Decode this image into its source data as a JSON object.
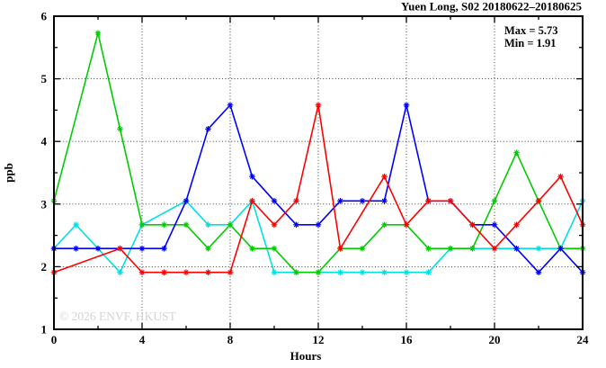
{
  "chart_data": {
    "type": "line",
    "title": "Yuen Long, S02 20180622–20180625",
    "xlabel": "Hours",
    "ylabel": "ppb",
    "xlim": [
      0,
      24
    ],
    "ylim": [
      1,
      6
    ],
    "xticks_major": [
      0,
      4,
      8,
      12,
      16,
      20,
      24
    ],
    "xticks_minor": [
      2,
      6,
      10,
      14,
      18,
      22
    ],
    "yticks_major": [
      1,
      2,
      3,
      4,
      5,
      6
    ],
    "yticks_minor": [
      1.5,
      2.5,
      3.5,
      4.5,
      5.5
    ],
    "grid_x": [
      4,
      8,
      12,
      16,
      20
    ],
    "grid_y": [
      2,
      3,
      4,
      5
    ],
    "grid_on": true,
    "legend_position": "none",
    "marker": "asterisk",
    "frame_color": "#000000",
    "grid_color": "#2a2a2a",
    "x": [
      0,
      1,
      2,
      3,
      4,
      5,
      6,
      7,
      8,
      9,
      10,
      11,
      12,
      13,
      14,
      15,
      16,
      17,
      18,
      19,
      20,
      21,
      22,
      23,
      24
    ],
    "series": [
      {
        "name": "cyan-line",
        "color": "#00e0e0",
        "values": [
          2.29,
          2.67,
          null,
          1.91,
          2.67,
          null,
          3.05,
          2.67,
          2.67,
          3.05,
          1.91,
          1.91,
          1.91,
          1.91,
          1.91,
          1.91,
          1.91,
          1.91,
          2.29,
          2.29,
          2.29,
          2.29,
          2.29,
          2.29,
          3.05
        ]
      },
      {
        "name": "green-line",
        "color": "#00cc00",
        "values": [
          3.05,
          null,
          5.73,
          4.2,
          2.67,
          2.67,
          2.67,
          2.29,
          2.67,
          2.29,
          2.29,
          1.91,
          1.91,
          2.29,
          2.29,
          2.67,
          2.67,
          2.29,
          2.29,
          2.29,
          3.05,
          3.82,
          3.05,
          2.29,
          2.29
        ]
      },
      {
        "name": "blue-line",
        "color": "#0000ff",
        "values": [
          2.29,
          2.29,
          2.29,
          2.29,
          2.29,
          2.29,
          3.05,
          4.2,
          4.58,
          3.44,
          3.05,
          2.67,
          2.67,
          3.05,
          3.05,
          3.05,
          4.58,
          3.05,
          3.05,
          2.67,
          2.67,
          2.29,
          1.91,
          2.29,
          1.91
        ]
      },
      {
        "name": "red-line",
        "color": "#ff0000",
        "values": [
          1.91,
          null,
          null,
          2.29,
          1.91,
          1.91,
          1.91,
          1.91,
          1.91,
          3.05,
          2.67,
          3.05,
          4.58,
          2.29,
          null,
          3.44,
          2.67,
          3.05,
          3.05,
          2.67,
          2.29,
          2.67,
          3.05,
          3.44,
          2.67
        ]
      }
    ],
    "annotations": {
      "max_label": "Max = 5.73",
      "min_label": "Min = 1.91"
    },
    "watermark": "© 2026 ENVF, HKUST"
  }
}
